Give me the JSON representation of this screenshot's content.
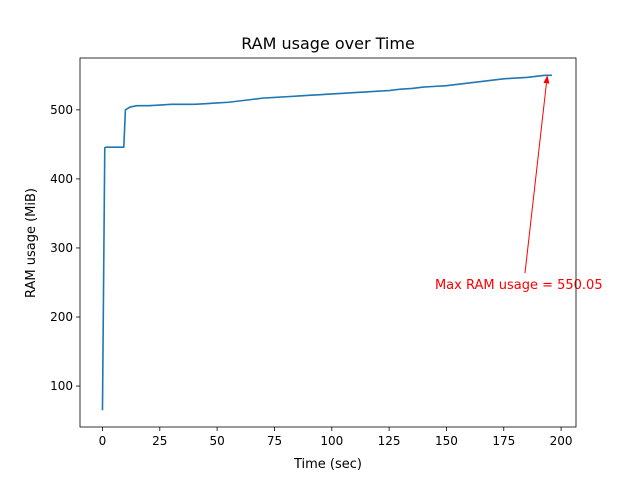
{
  "chart_data": {
    "type": "line",
    "title": "RAM usage over Time",
    "xlabel": "Time (sec)",
    "ylabel": "RAM usage (MiB)",
    "xlim": [
      -9.8,
      206.5
    ],
    "ylim": [
      40.7,
      575.1
    ],
    "xticks": [
      0,
      25,
      50,
      75,
      100,
      125,
      150,
      175,
      200
    ],
    "yticks": [
      100,
      200,
      300,
      400,
      500
    ],
    "grid": false,
    "series": [
      {
        "color": "#1f77b4",
        "x": [
          0,
          1,
          1.5,
          5,
          9,
          9.3,
          10,
          12,
          15,
          20,
          25,
          30,
          35,
          40,
          45,
          50,
          55,
          60,
          65,
          70,
          75,
          80,
          85,
          90,
          95,
          100,
          105,
          110,
          115,
          120,
          125,
          130,
          135,
          140,
          145,
          150,
          155,
          160,
          165,
          170,
          175,
          180,
          185,
          190,
          193,
          196
        ],
        "y": [
          65,
          445,
          446,
          446,
          446,
          446,
          500,
          504,
          506,
          506,
          507,
          508,
          508,
          508,
          509,
          510,
          511,
          513,
          515,
          517,
          518,
          519,
          520,
          521,
          522,
          523,
          524,
          525,
          526,
          527,
          528,
          530,
          531,
          533,
          534,
          535,
          537,
          539,
          541,
          543,
          545,
          546,
          547,
          549,
          550,
          550.05
        ]
      }
    ],
    "annotation": {
      "text": "Max RAM usage = 550.05",
      "color": "#ff0000",
      "xy": [
        194,
        550.05
      ],
      "xytext": [
        145,
        246
      ]
    }
  }
}
